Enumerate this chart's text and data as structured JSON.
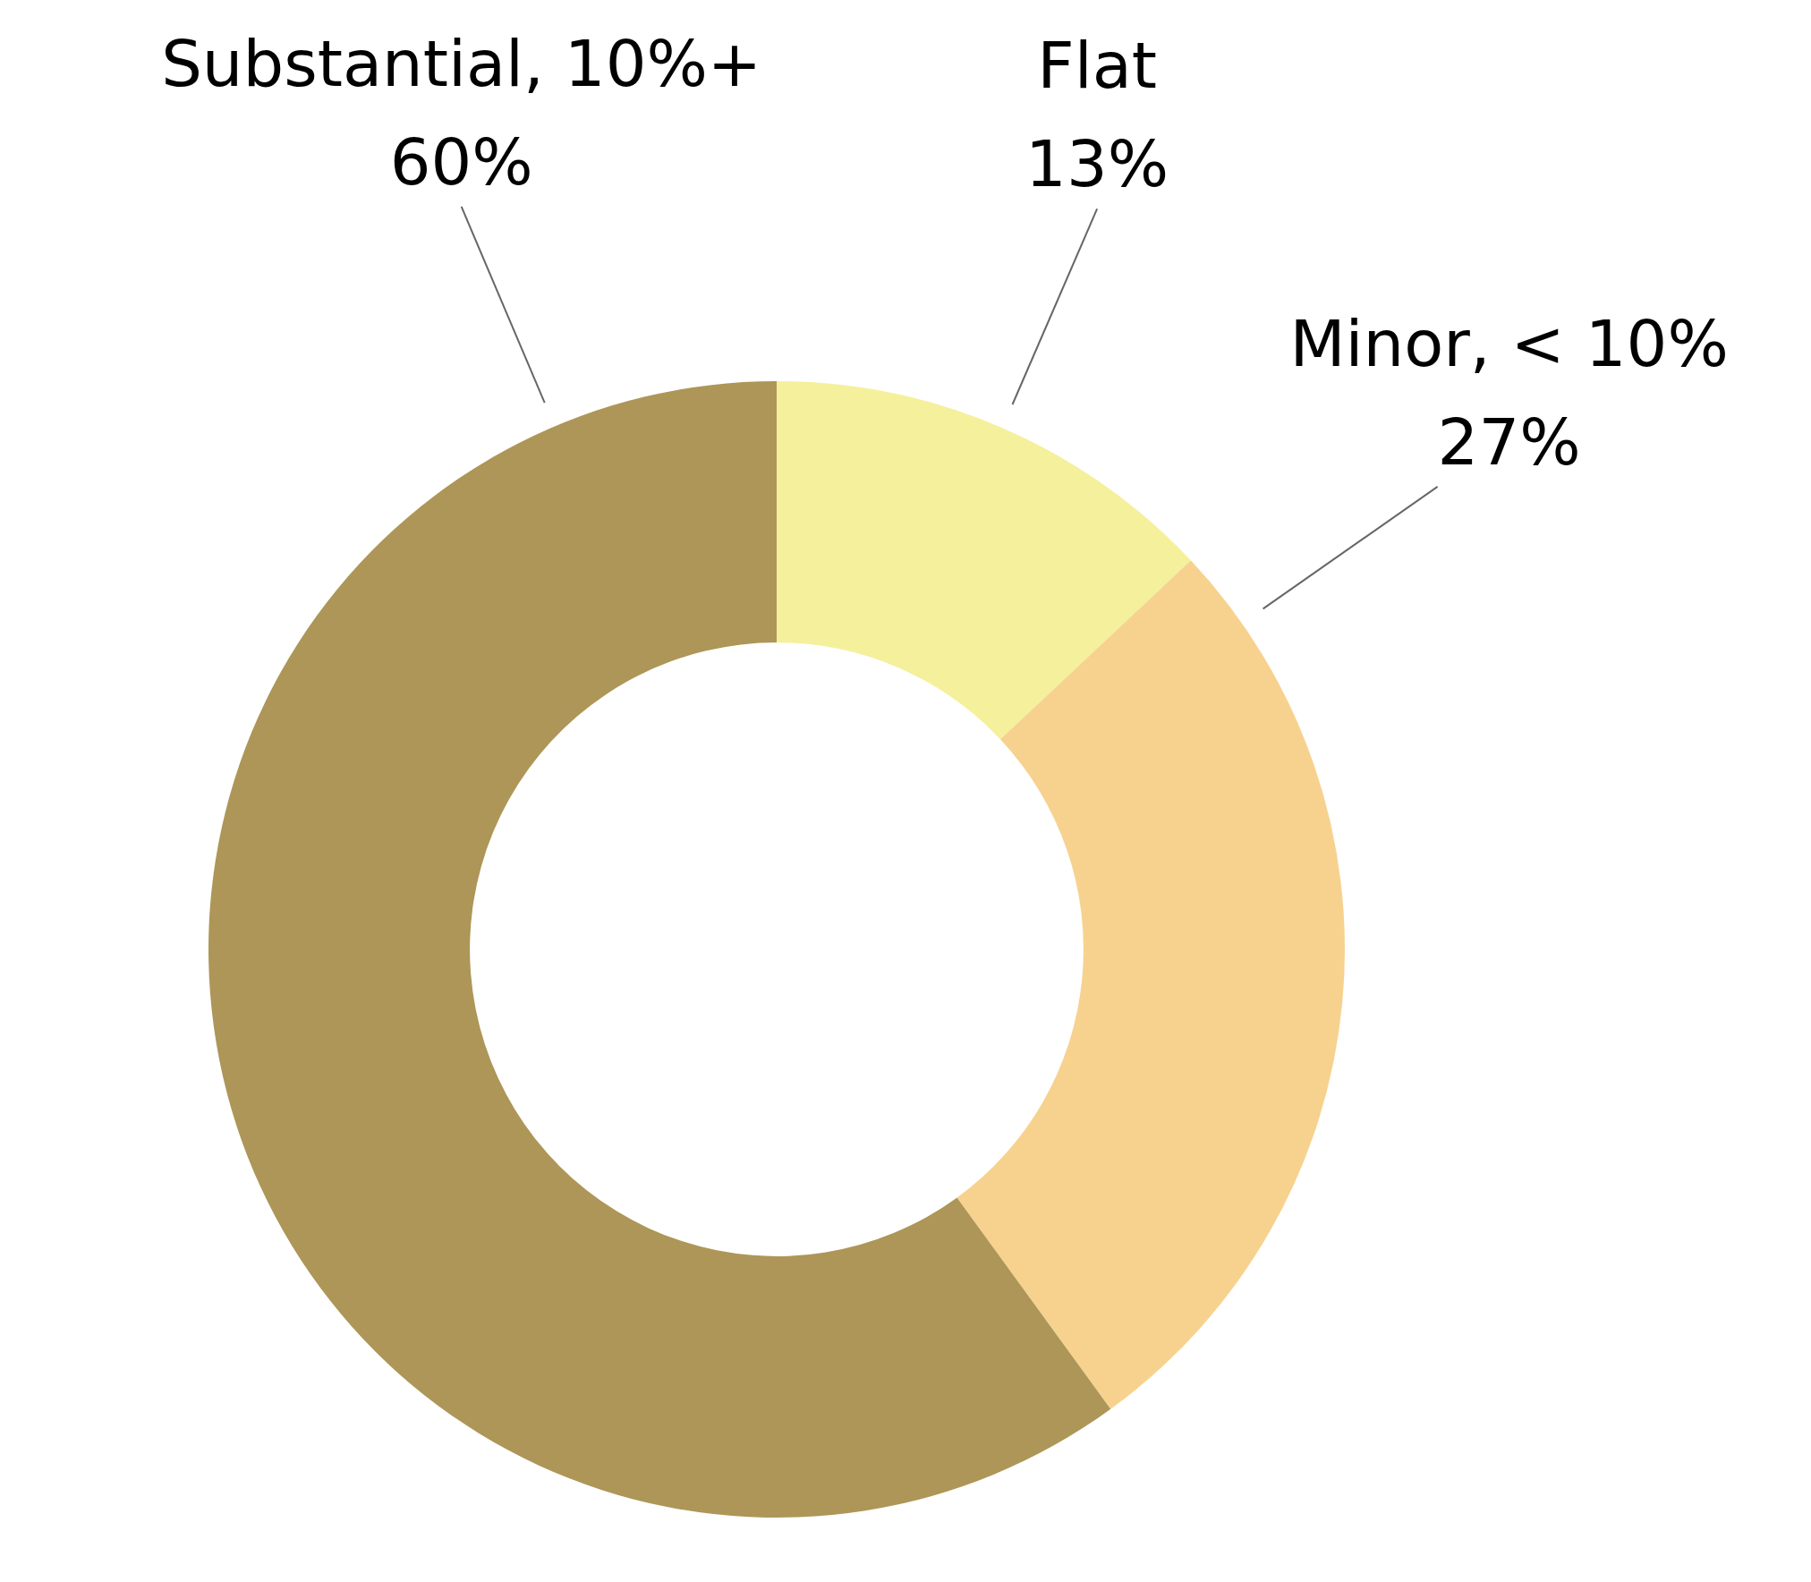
{
  "chart_data": {
    "type": "donut",
    "categories": [
      "Flat",
      "Minor, < 10%",
      "Substantial, 10%+"
    ],
    "values": [
      13,
      27,
      60
    ],
    "value_labels": [
      "13%",
      "27%",
      "60%"
    ],
    "colors": [
      "#f5f09c",
      "#f7d28f",
      "#ad9657"
    ],
    "legend": false
  }
}
